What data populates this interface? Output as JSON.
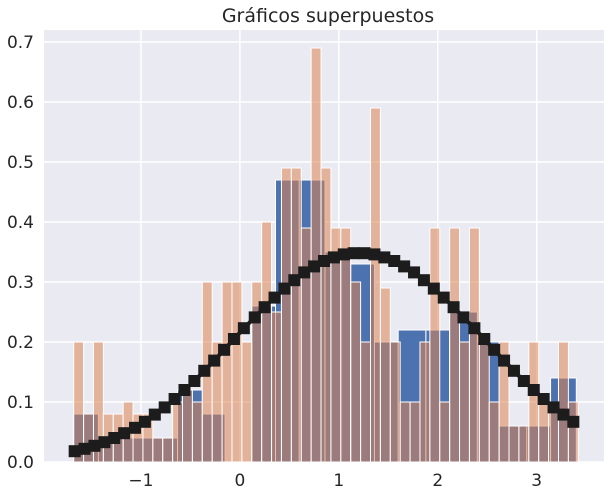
{
  "chart_data": {
    "type": "bar",
    "title": "Gráficos superpuestos",
    "xlabel": "",
    "ylabel": "",
    "xlim": [
      -1.98,
      3.68
    ],
    "ylim": [
      0,
      0.72
    ],
    "xticks": [
      -1,
      0,
      1,
      2,
      3
    ],
    "xtick_labels": [
      "−1",
      "0",
      "1",
      "2",
      "3"
    ],
    "yticks": [
      0.0,
      0.1,
      0.2,
      0.3,
      0.4,
      0.5,
      0.6,
      0.7
    ],
    "ytick_labels": [
      "0.0",
      "0.1",
      "0.2",
      "0.3",
      "0.4",
      "0.5",
      "0.6",
      "0.7"
    ],
    "grid": true,
    "background": "#eaeaf2",
    "series": [
      {
        "kind": "hist",
        "color": "#4c72b0",
        "opacity": 1,
        "bins": [
          [
            -1.68,
            -1.43,
            0.08
          ],
          [
            -1.43,
            -1.18,
            0.04
          ],
          [
            -1.18,
            -0.63,
            0.04
          ],
          [
            -0.63,
            -0.38,
            0.12
          ],
          [
            -0.38,
            -0.15,
            0.08
          ],
          [
            -0.15,
            0.12,
            0.0
          ],
          [
            0.12,
            0.36,
            0.26
          ],
          [
            0.36,
            0.6,
            0.47
          ],
          [
            0.6,
            0.86,
            0.47
          ],
          [
            0.86,
            1.12,
            0.35
          ],
          [
            1.12,
            1.36,
            0.33
          ],
          [
            1.36,
            1.6,
            0.2
          ],
          [
            1.6,
            1.88,
            0.22
          ],
          [
            1.88,
            2.12,
            0.22
          ],
          [
            2.12,
            2.4,
            0.25
          ],
          [
            2.4,
            2.62,
            0.2
          ],
          [
            2.62,
            2.9,
            0.06
          ],
          [
            2.9,
            3.14,
            0.06
          ],
          [
            3.14,
            3.4,
            0.14
          ]
        ]
      },
      {
        "kind": "hist",
        "color": "#dd8452",
        "opacity": 0.55,
        "bins": [
          [
            -1.68,
            -1.58,
            0.2
          ],
          [
            -1.58,
            -1.48,
            0.08
          ],
          [
            -1.48,
            -1.38,
            0.2
          ],
          [
            -1.38,
            -1.28,
            0.08
          ],
          [
            -1.28,
            -1.18,
            0.08
          ],
          [
            -1.18,
            -1.08,
            0.1
          ],
          [
            -1.08,
            -0.98,
            0.08
          ],
          [
            -0.98,
            -0.88,
            0.08
          ],
          [
            -0.88,
            -0.78,
            0.04
          ],
          [
            -0.78,
            -0.68,
            0.04
          ],
          [
            -0.68,
            -0.58,
            0.1
          ],
          [
            -0.58,
            -0.48,
            0.12
          ],
          [
            -0.48,
            -0.38,
            0.1
          ],
          [
            -0.38,
            -0.28,
            0.3
          ],
          [
            -0.28,
            -0.18,
            0.2
          ],
          [
            -0.18,
            -0.08,
            0.3
          ],
          [
            -0.08,
            0.02,
            0.3
          ],
          [
            0.02,
            0.12,
            0.2
          ],
          [
            0.12,
            0.22,
            0.3
          ],
          [
            0.22,
            0.32,
            0.4
          ],
          [
            0.32,
            0.42,
            0.25
          ],
          [
            0.42,
            0.52,
            0.49
          ],
          [
            0.52,
            0.62,
            0.49
          ],
          [
            0.62,
            0.72,
            0.39
          ],
          [
            0.72,
            0.82,
            0.69
          ],
          [
            0.82,
            0.92,
            0.49
          ],
          [
            0.92,
            1.02,
            0.39
          ],
          [
            1.02,
            1.12,
            0.39
          ],
          [
            1.12,
            1.22,
            0.3
          ],
          [
            1.22,
            1.32,
            0.2
          ],
          [
            1.32,
            1.42,
            0.59
          ],
          [
            1.42,
            1.52,
            0.29
          ],
          [
            1.52,
            1.62,
            0.2
          ],
          [
            1.62,
            1.72,
            0.1
          ],
          [
            1.72,
            1.82,
            0.1
          ],
          [
            1.82,
            1.92,
            0.2
          ],
          [
            1.92,
            2.02,
            0.39
          ],
          [
            2.02,
            2.12,
            0.1
          ],
          [
            2.12,
            2.22,
            0.39
          ],
          [
            2.22,
            2.32,
            0.2
          ],
          [
            2.32,
            2.42,
            0.39
          ],
          [
            2.42,
            2.52,
            0.2
          ],
          [
            2.52,
            2.62,
            0.1
          ],
          [
            2.62,
            2.72,
            0.2
          ],
          [
            2.72,
            2.82,
            0.06
          ],
          [
            2.82,
            2.92,
            0.06
          ],
          [
            2.92,
            3.02,
            0.2
          ],
          [
            3.02,
            3.12,
            0.1
          ],
          [
            3.12,
            3.22,
            0.1
          ],
          [
            3.22,
            3.32,
            0.2
          ],
          [
            3.32,
            3.42,
            0.1
          ]
        ]
      },
      {
        "kind": "line",
        "color": "#1c1c1c",
        "marker": "square",
        "x": [
          -1.67,
          -1.57,
          -1.47,
          -1.37,
          -1.27,
          -1.17,
          -1.06,
          -0.96,
          -0.86,
          -0.76,
          -0.66,
          -0.56,
          -0.46,
          -0.36,
          -0.26,
          -0.16,
          -0.06,
          0.04,
          0.15,
          0.25,
          0.35,
          0.45,
          0.55,
          0.65,
          0.75,
          0.85,
          0.95,
          1.05,
          1.15,
          1.26,
          1.36,
          1.46,
          1.56,
          1.66,
          1.76,
          1.86,
          1.96,
          2.06,
          2.16,
          2.26,
          2.37,
          2.47,
          2.57,
          2.67,
          2.77,
          2.87,
          2.97,
          3.07,
          3.17,
          3.27,
          3.37
        ],
        "y": [
          0.018,
          0.022,
          0.027,
          0.033,
          0.04,
          0.048,
          0.057,
          0.067,
          0.079,
          0.091,
          0.105,
          0.12,
          0.135,
          0.152,
          0.169,
          0.187,
          0.205,
          0.223,
          0.241,
          0.258,
          0.274,
          0.289,
          0.303,
          0.316,
          0.326,
          0.335,
          0.341,
          0.346,
          0.348,
          0.348,
          0.346,
          0.341,
          0.335,
          0.326,
          0.316,
          0.303,
          0.289,
          0.274,
          0.258,
          0.241,
          0.223,
          0.205,
          0.187,
          0.169,
          0.152,
          0.135,
          0.12,
          0.105,
          0.091,
          0.079,
          0.067
        ]
      }
    ]
  }
}
